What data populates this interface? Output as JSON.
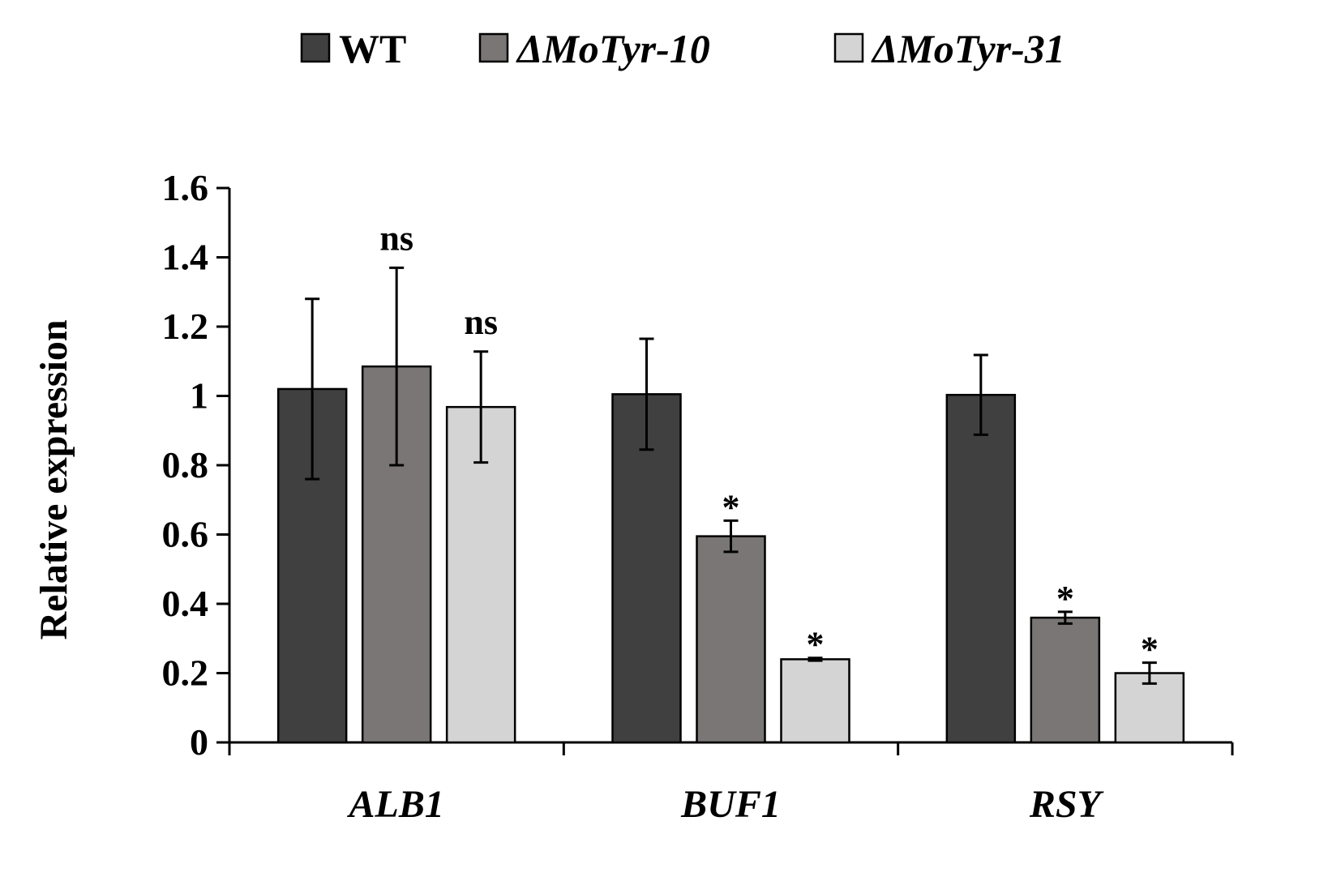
{
  "chart_data": {
    "type": "bar",
    "title": "",
    "xlabel": "",
    "ylabel": "Relative expression",
    "ylim": [
      0,
      1.6
    ],
    "yticks": [
      "0",
      "0.2",
      "0.4",
      "0.6",
      "0.8",
      "1",
      "1.2",
      "1.4",
      "1.6"
    ],
    "categories": [
      "ALB1",
      "BUF1",
      "RSY"
    ],
    "legend_position": "top",
    "series": [
      {
        "name": "WT",
        "color": "#404040",
        "values": [
          1.02,
          1.005,
          1.003
        ],
        "errors": [
          0.26,
          0.16,
          0.115
        ],
        "annotations": [
          "",
          "",
          ""
        ]
      },
      {
        "name": "ΔMoTyr-10",
        "color": "#7a7676",
        "values": [
          1.085,
          0.595,
          0.36
        ],
        "errors": [
          0.285,
          0.045,
          0.017
        ],
        "annotations": [
          "ns",
          "*",
          "*"
        ]
      },
      {
        "name": "ΔMoTyr-31",
        "color": "#d4d4d4",
        "values": [
          0.968,
          0.24,
          0.2
        ],
        "errors": [
          0.16,
          0.004,
          0.03
        ],
        "annotations": [
          "ns",
          "*",
          "*"
        ]
      }
    ]
  }
}
